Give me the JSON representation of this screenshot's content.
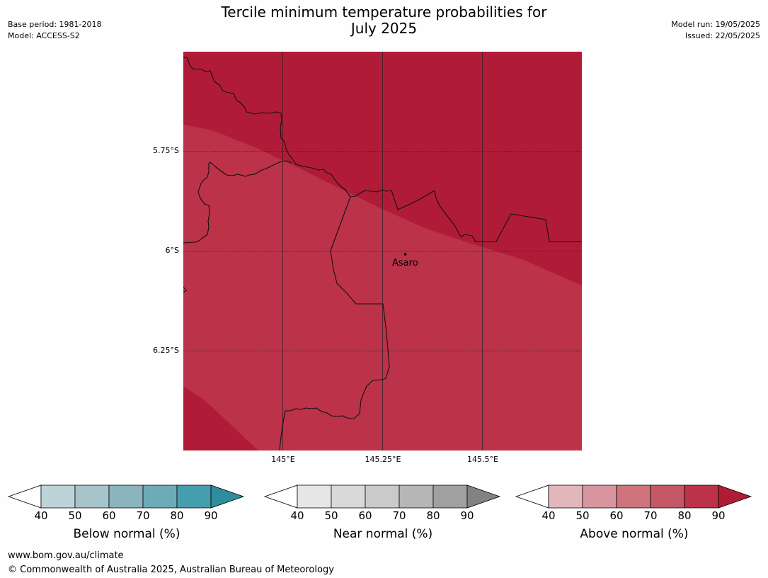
{
  "title_line1": "Tercile minimum temperature probabilities for",
  "title_line2": "July 2025",
  "meta_left": {
    "base_period": "Base period: 1981-2018",
    "model": "Model: ACCESS-S2"
  },
  "meta_right": {
    "model_run": "Model run: 19/05/2025",
    "issued": "Issued: 22/05/2025"
  },
  "map": {
    "lat_ticks": [
      "5.75°S",
      "6°S",
      "6.25°S"
    ],
    "lon_ticks": [
      "145°E",
      "145.25°E",
      "145.5°E"
    ],
    "place": "Asaro",
    "colors": {
      "dark_region": "#b01c37",
      "light_region": "#bb3249"
    }
  },
  "colorbars": [
    {
      "label": "Below normal (%)",
      "ticks": [
        "40",
        "50",
        "60",
        "70",
        "80",
        "90"
      ],
      "colors": [
        "#bdd3d8",
        "#a6c4ca",
        "#8ab5bf",
        "#6dabb7",
        "#459ead",
        "#2e8d9e"
      ]
    },
    {
      "label": "Near normal (%)",
      "ticks": [
        "40",
        "50",
        "60",
        "70",
        "80",
        "90"
      ],
      "colors": [
        "#e6e6e6",
        "#d9d9d9",
        "#cacaca",
        "#b6b6b6",
        "#a0a0a0",
        "#828282"
      ]
    },
    {
      "label": "Above normal (%)",
      "ticks": [
        "40",
        "50",
        "60",
        "70",
        "80",
        "90"
      ],
      "colors": [
        "#e3b6bc",
        "#d8959d",
        "#cd747d",
        "#c45766",
        "#bb3249",
        "#b01c37"
      ]
    }
  ],
  "footer": {
    "url": "www.bom.gov.au/climate",
    "copyright": "© Commonwealth of Australia 2025, Australian Bureau of Meteorology"
  }
}
